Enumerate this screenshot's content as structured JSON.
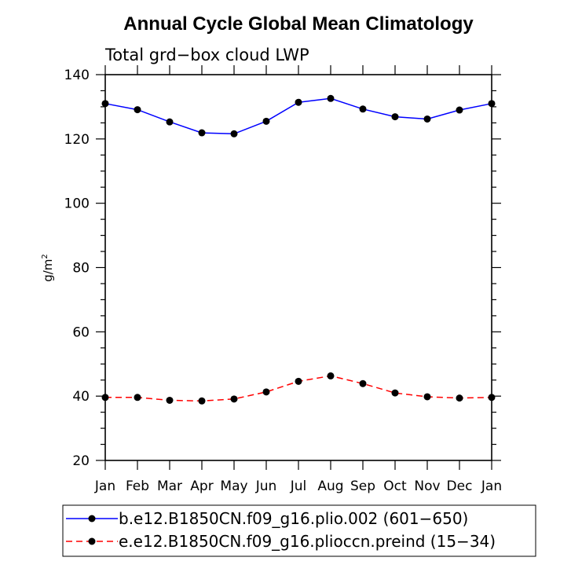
{
  "chart_data": {
    "type": "line",
    "title": "Annual Cycle Global Mean Climatology",
    "subtitle": "Total grd−box cloud LWP",
    "ylabel": "g/m",
    "ylabel_sup": "2",
    "xlabel": "",
    "categories": [
      "Jan",
      "Feb",
      "Mar",
      "Apr",
      "May",
      "Jun",
      "Jul",
      "Aug",
      "Sep",
      "Oct",
      "Nov",
      "Dec",
      "Jan"
    ],
    "ylim": [
      20,
      140
    ],
    "yticks": [
      20,
      40,
      60,
      80,
      100,
      120,
      140
    ],
    "yminor_step": 5,
    "grid": false,
    "legend_position": "bottom",
    "series": [
      {
        "name": "b.e12.B1850CN.f09_g16.plio.002 (601−650)",
        "color": "#0000ff",
        "dash": "solid",
        "values": [
          131.0,
          129.1,
          125.3,
          121.9,
          121.6,
          125.5,
          131.4,
          132.6,
          129.3,
          126.9,
          126.2,
          129.0,
          131.0
        ]
      },
      {
        "name": "e.e12.B1850CN.f09_g16.plioccn.preind (15−34)",
        "color": "#ff0000",
        "dash": "dashed",
        "values": [
          39.6,
          39.6,
          38.7,
          38.5,
          39.1,
          41.3,
          44.6,
          46.3,
          43.9,
          41.0,
          39.8,
          39.4,
          39.6
        ]
      }
    ]
  }
}
